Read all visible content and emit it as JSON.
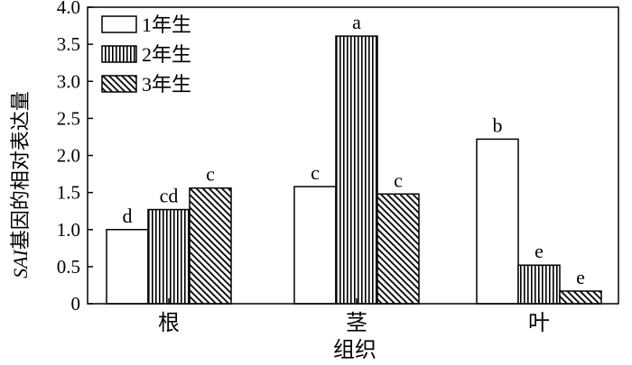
{
  "chart_data": {
    "type": "bar",
    "categories": [
      "根",
      "茎",
      "叶"
    ],
    "series": [
      {
        "name": "1年生",
        "values": [
          1.0,
          1.58,
          2.22
        ],
        "labels": [
          "d",
          "c",
          "b"
        ],
        "pattern": "white"
      },
      {
        "name": "2年生",
        "values": [
          1.27,
          3.61,
          0.52
        ],
        "labels": [
          "cd",
          "a",
          "e"
        ],
        "pattern": "vertical-stripes"
      },
      {
        "name": "3年生",
        "values": [
          1.56,
          1.48,
          0.17
        ],
        "labels": [
          "c",
          "c",
          "e"
        ],
        "pattern": "diagonal-hatch"
      }
    ],
    "xlabel": "组织",
    "ylabel": {
      "italic": "SAI",
      "rest": "基因的相对表达量"
    },
    "ylim": [
      0,
      4.0
    ],
    "yticks": [
      "0",
      "0.5",
      "1.0",
      "1.5",
      "2.0",
      "2.5",
      "3.0",
      "3.5",
      "4.0"
    ],
    "legend_position": "top-left",
    "grid": false
  }
}
